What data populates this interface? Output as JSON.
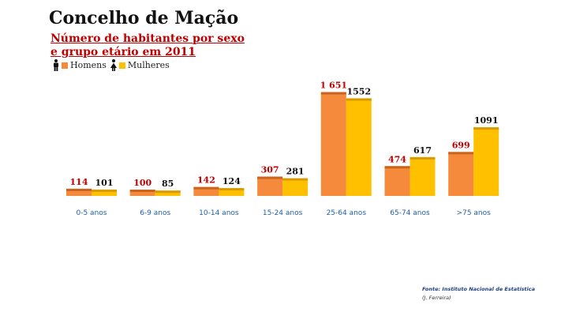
{
  "title": "Concelho de Mação",
  "subtitle_line1": "Número de habitantes por sexo",
  "subtitle_line2": "e grupo etário em 2011",
  "legend": {
    "male_label": "Homens",
    "female_label": "Mulheres"
  },
  "source": "Fonte: Instituto Nacional de Estatística",
  "author": "(J. Ferreira)",
  "colors": {
    "male": "#f58a3c",
    "male_top": "#c9641f",
    "female": "#ffc000",
    "female_top": "#d99a00",
    "male_label": "#c00000",
    "female_label": "#111111",
    "category_label": "#1f5fa6"
  },
  "chart_data": {
    "type": "bar",
    "title": "Número de habitantes por sexo e grupo etário em 2011",
    "categories": [
      "0-5 anos",
      "6-9 anos",
      "10-14 anos",
      "15-24 anos",
      "25-64 anos",
      "65-74 anos",
      ">75 anos"
    ],
    "series": [
      {
        "name": "Homens",
        "values": [
          114,
          100,
          142,
          307,
          1651,
          474,
          699
        ],
        "labels": [
          "114",
          "100",
          "142",
          "307",
          "1 651",
          "474",
          "699"
        ]
      },
      {
        "name": "Mulheres",
        "values": [
          101,
          85,
          124,
          281,
          1552,
          617,
          1091
        ],
        "labels": [
          "101",
          "85",
          "124",
          "281",
          "1552",
          "617",
          "1091"
        ]
      }
    ],
    "ylim": [
      0,
      1750
    ],
    "grid": false,
    "legend_position": "top-left"
  }
}
